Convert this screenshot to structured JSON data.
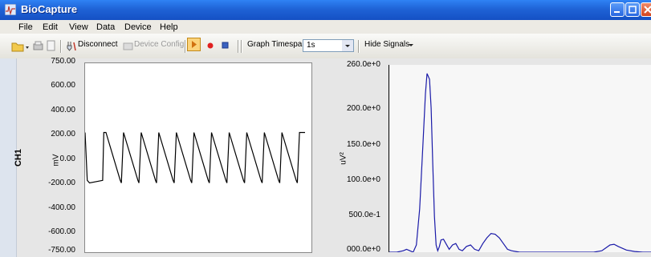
{
  "window": {
    "title": "BioCapture"
  },
  "menu": [
    "File",
    "Edit",
    "View",
    "Data",
    "Device",
    "Help"
  ],
  "toolbar": {
    "disconnect_label": "Disconnect",
    "device_config_label": "Device Config",
    "graph_timespan_label": "Graph Timespan",
    "timespan_value": "1s",
    "hide_signals_label": "Hide Signals"
  },
  "left_chart": {
    "channel_label": "CH1",
    "unit": "mV",
    "ticks": [
      "750.00",
      "600.00",
      "400.00",
      "200.00",
      "0.00",
      "-200.00",
      "-400.00",
      "-600.00",
      "-750.00"
    ]
  },
  "right_chart": {
    "unit": "uV²",
    "ticks": [
      "260.0e+0",
      "200.0e+0",
      "150.0e+0",
      "100.0e+0",
      "500.0e-1",
      "000.0e+0"
    ]
  },
  "chart_data": [
    {
      "type": "line",
      "ylabel": "mV",
      "ylim": [
        -750,
        750
      ],
      "series": [
        {
          "values_description": "square wave",
          "x": [
            0,
            0.01,
            0.02,
            0.08,
            0.085,
            0.095,
            0.16,
            0.165,
            0.175,
            0.24,
            0.245,
            0.255,
            0.32,
            0.325,
            0.335,
            0.4,
            0.405,
            0.415,
            0.48,
            0.485,
            0.495,
            0.56,
            0.565,
            0.575,
            0.64,
            0.645,
            0.655,
            0.72,
            0.725,
            0.735,
            0.8,
            0.805,
            0.815,
            0.88,
            0.885,
            0.895,
            0.96,
            0.965,
            0.975,
            1.0
          ],
          "y": [
            200,
            -180,
            -200,
            -180,
            200,
            200,
            -180,
            -200,
            200,
            -180,
            -200,
            200,
            -180,
            -200,
            200,
            -180,
            -200,
            200,
            -180,
            -200,
            200,
            -180,
            -200,
            200,
            -180,
            -200,
            200,
            -180,
            -200,
            200,
            -180,
            -200,
            200,
            -180,
            -200,
            200,
            -180,
            -200,
            200,
            200
          ]
        }
      ]
    },
    {
      "type": "line",
      "ylabel": "uV²",
      "ylim": [
        0,
        260
      ],
      "series": [
        {
          "x": [
            0,
            10,
            18,
            22,
            26,
            30,
            34,
            38,
            42,
            45,
            47,
            50,
            52,
            54,
            56,
            58,
            60,
            62,
            64,
            67,
            70,
            74,
            78,
            82,
            86,
            90,
            95,
            100,
            105,
            110,
            115,
            120,
            125,
            130,
            135,
            140,
            145,
            150,
            155,
            160,
            170,
            180,
            190,
            200,
            210,
            220,
            230,
            240,
            250,
            260,
            265,
            270,
            275,
            280,
            290,
            300,
            310,
            320
          ],
          "y": [
            0,
            0,
            2,
            4,
            2,
            0,
            10,
            60,
            150,
            220,
            248,
            240,
            200,
            120,
            50,
            10,
            2,
            8,
            17,
            18,
            12,
            4,
            10,
            12,
            4,
            2,
            8,
            10,
            4,
            2,
            12,
            20,
            26,
            25,
            20,
            12,
            4,
            2,
            1,
            0,
            0,
            0,
            0,
            0,
            0,
            0,
            0,
            0,
            0,
            2,
            6,
            10,
            11,
            8,
            3,
            1,
            0,
            0
          ]
        }
      ]
    }
  ]
}
